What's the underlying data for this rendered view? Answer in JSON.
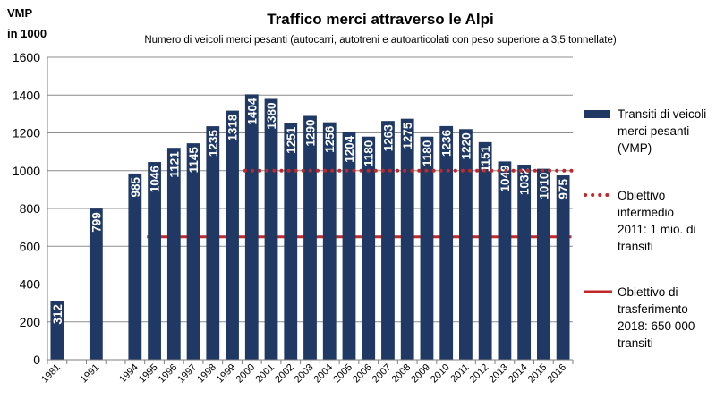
{
  "chart_data": {
    "type": "bar",
    "title": "Traffico merci attraverso le Alpi",
    "subtitle": "Numero di veicoli merci pesanti (autocarri, autotreni e autoarticolati con peso superiore a 3,5 tonnellate)",
    "ylabel_line1": "VMP",
    "ylabel_line2": "in 1000",
    "ylim": [
      0,
      1600
    ],
    "yticks": [
      0,
      200,
      400,
      600,
      800,
      1000,
      1200,
      1400,
      1600
    ],
    "grid": true,
    "categories": [
      "1981",
      "1991",
      "1994",
      "1995",
      "1996",
      "1997",
      "1998",
      "1999",
      "2000",
      "2001",
      "2002",
      "2003",
      "2004",
      "2005",
      "2006",
      "2007",
      "2008",
      "2009",
      "2010",
      "2011",
      "2012",
      "2013",
      "2014",
      "2015",
      "2016"
    ],
    "category_gaps_after": [
      "1981",
      "1991"
    ],
    "series": [
      {
        "name": "Transiti di veicoli merci pesanti (VMP)",
        "color": "#1f3864",
        "values": [
          312,
          799,
          985,
          1046,
          1121,
          1145,
          1235,
          1318,
          1404,
          1380,
          1251,
          1290,
          1256,
          1204,
          1180,
          1263,
          1275,
          1180,
          1236,
          1220,
          1151,
          1049,
          1032,
          1010,
          975
        ]
      }
    ],
    "reference_lines": [
      {
        "name": "Obiettivo intermedio 2011: 1 mio. di transiti",
        "value": 1000,
        "from": "2000",
        "to": "2016",
        "style": "dotted",
        "color": "#c0282a"
      },
      {
        "name": "Obiettivo di trasferimento 2018: 650 000 transiti",
        "value": 650,
        "from": "1995",
        "to": "2016",
        "style": "solid",
        "color": "#c0282a"
      }
    ],
    "legend_position": "right",
    "legend": [
      {
        "lines": [
          "Transiti di veicoli",
          "merci pesanti",
          "(VMP)"
        ],
        "marker": "bar"
      },
      {
        "lines": [
          "Obiettivo",
          "intermedio",
          "2011: 1 mio. di",
          "transiti"
        ],
        "marker": "dotted"
      },
      {
        "lines": [
          "Obiettivo di",
          "trasferimento",
          "2018: 650 000",
          "transiti"
        ],
        "marker": "solid"
      }
    ]
  }
}
